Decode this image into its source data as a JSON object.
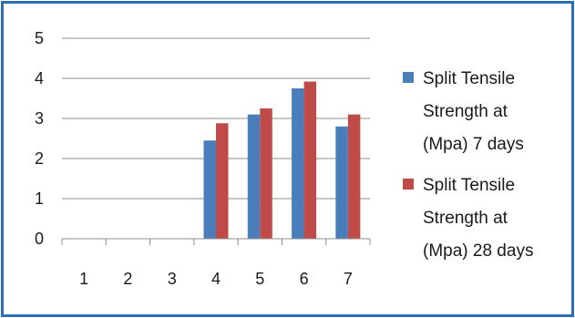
{
  "chart_data": {
    "type": "bar",
    "categories": [
      "1",
      "2",
      "3",
      "4",
      "5",
      "6",
      "7"
    ],
    "series": [
      {
        "name": "Split Tensile Strength at (Mpa) 7 days",
        "legend_lines": [
          "Split Tensile",
          "Strength at",
          "(Mpa) 7 days"
        ],
        "color": "#4a7ebb",
        "values": [
          null,
          null,
          null,
          2.45,
          3.1,
          3.75,
          2.8
        ]
      },
      {
        "name": "Split Tensile Strength at (Mpa) 28 days",
        "legend_lines": [
          "Split Tensile",
          "Strength at",
          "(Mpa) 28 days"
        ],
        "color": "#be4b48",
        "values": [
          null,
          null,
          null,
          2.88,
          3.25,
          3.92,
          3.1
        ]
      }
    ],
    "ylim": [
      0,
      5
    ],
    "yticks": [
      0,
      1,
      2,
      3,
      4,
      5
    ],
    "grid": true,
    "legend_position": "right",
    "frame_color": "#2f6db5"
  }
}
